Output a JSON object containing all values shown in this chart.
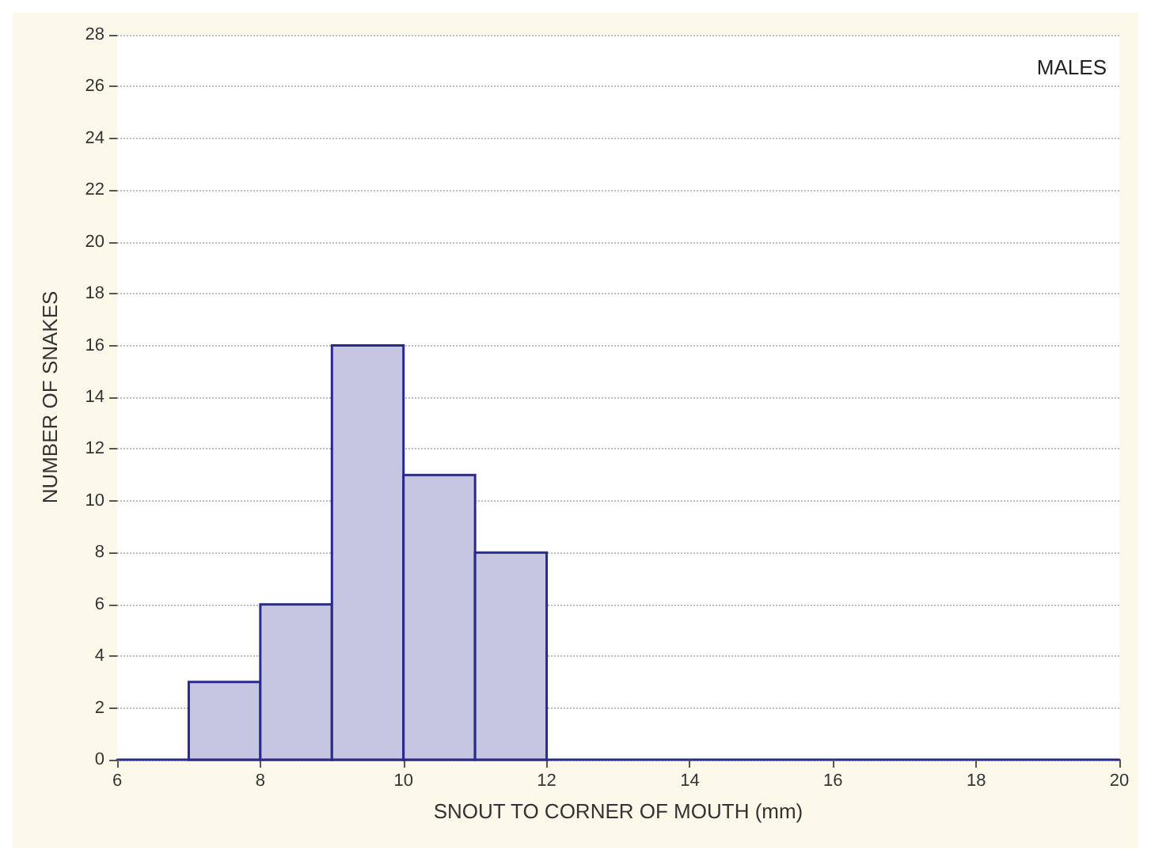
{
  "chart_data": {
    "type": "histogram",
    "xlabel": "SNOUT TO CORNER OF MOUTH (mm)",
    "ylabel": "NUMBER OF SNAKES",
    "annotations": [
      "MALES"
    ],
    "bins": [
      7,
      8,
      9,
      10,
      11,
      12
    ],
    "values": [
      3,
      6,
      16,
      11,
      8
    ],
    "color": "#c6c6e2",
    "xlim": [
      6,
      20
    ],
    "xticks": [
      6,
      8,
      10,
      12,
      14,
      16,
      18,
      20
    ],
    "ylim": [
      0,
      28
    ],
    "yticks": [
      0,
      2,
      4,
      6,
      8,
      10,
      12,
      14,
      16,
      18,
      20,
      22,
      24,
      26,
      28
    ],
    "grid": "y"
  }
}
